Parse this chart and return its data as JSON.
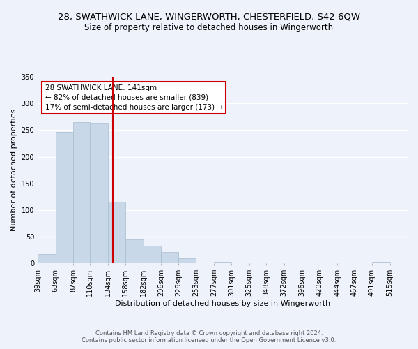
{
  "title_line1": "28, SWATHWICK LANE, WINGERWORTH, CHESTERFIELD, S42 6QW",
  "title_line2": "Size of property relative to detached houses in Wingerworth",
  "xlabel": "Distribution of detached houses by size in Wingerworth",
  "ylabel": "Number of detached properties",
  "bin_labels": [
    "39sqm",
    "63sqm",
    "87sqm",
    "110sqm",
    "134sqm",
    "158sqm",
    "182sqm",
    "206sqm",
    "229sqm",
    "253sqm",
    "277sqm",
    "301sqm",
    "325sqm",
    "348sqm",
    "372sqm",
    "396sqm",
    "420sqm",
    "444sqm",
    "467sqm",
    "491sqm",
    "515sqm"
  ],
  "bar_heights": [
    18,
    247,
    265,
    263,
    116,
    45,
    33,
    21,
    9,
    0,
    2,
    0,
    0,
    0,
    0,
    0,
    0,
    0,
    0,
    2,
    0
  ],
  "bar_color": "#c8d8e8",
  "bar_edge_color": "#a8bece",
  "ylim": [
    0,
    350
  ],
  "yticks": [
    0,
    50,
    100,
    150,
    200,
    250,
    300,
    350
  ],
  "vline_x": 141,
  "vline_color": "#cc0000",
  "bin_edges_values": [
    39,
    63,
    87,
    110,
    134,
    158,
    182,
    206,
    229,
    253,
    277,
    301,
    325,
    348,
    372,
    396,
    420,
    444,
    467,
    491,
    515,
    539
  ],
  "annotation_title": "28 SWATHWICK LANE: 141sqm",
  "annotation_line1": "← 82% of detached houses are smaller (839)",
  "annotation_line2": "17% of semi-detached houses are larger (173) →",
  "annotation_box_color": "#ffffff",
  "annotation_box_edge": "#cc0000",
  "footer_line1": "Contains HM Land Registry data © Crown copyright and database right 2024.",
  "footer_line2": "Contains public sector information licensed under the Open Government Licence v3.0.",
  "background_color": "#eef2fb",
  "plot_background": "#eef2fb",
  "grid_color": "#ffffff",
  "title_fontsize": 9.5,
  "subtitle_fontsize": 8.5,
  "axis_label_fontsize": 8,
  "tick_fontsize": 7,
  "footer_fontsize": 6,
  "annotation_fontsize": 7.5
}
